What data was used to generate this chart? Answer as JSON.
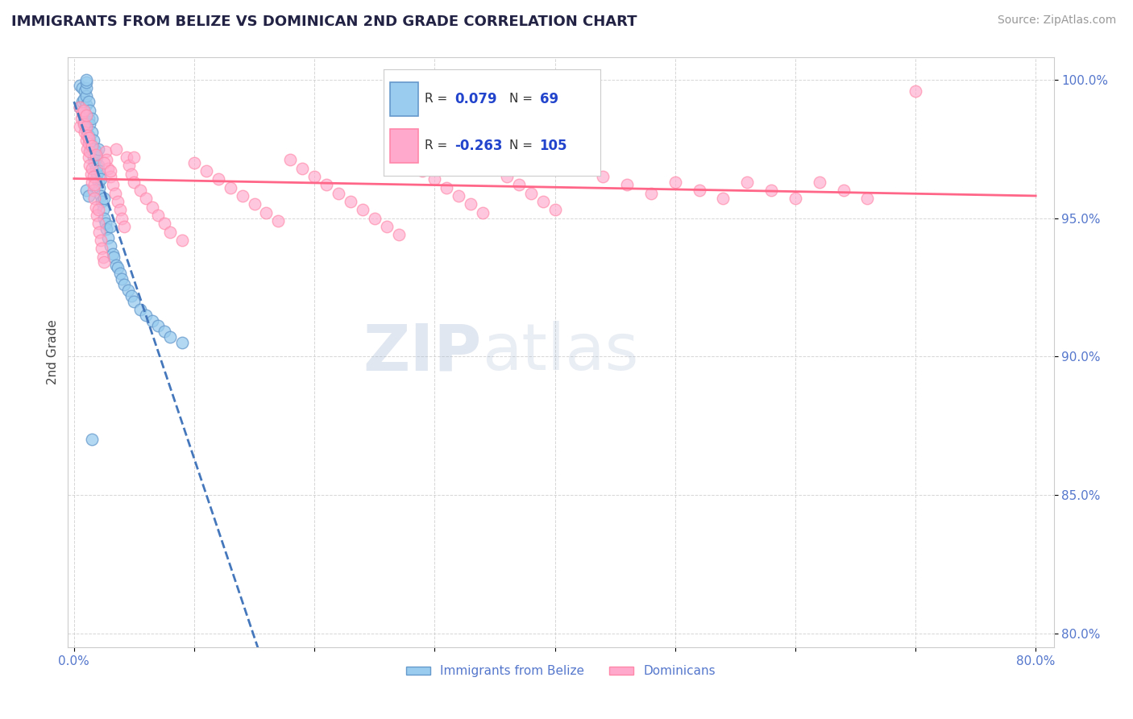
{
  "title": "IMMIGRANTS FROM BELIZE VS DOMINICAN 2ND GRADE CORRELATION CHART",
  "source": "Source: ZipAtlas.com",
  "ylabel": "2nd Grade",
  "watermark_zip": "ZIP",
  "watermark_atlas": "atlas",
  "legend_label1": "Immigrants from Belize",
  "legend_label2": "Dominicans",
  "r1": 0.079,
  "n1": 69,
  "r2": -0.263,
  "n2": 105,
  "xmin": 0.0,
  "xmax": 0.8,
  "ymin": 0.795,
  "ymax": 1.008,
  "yticks": [
    0.8,
    0.85,
    0.9,
    0.95,
    1.0
  ],
  "ytick_labels": [
    "80.0%",
    "85.0%",
    "90.0%",
    "95.0%",
    "100.0%"
  ],
  "xticks": [
    0.0,
    0.1,
    0.2,
    0.3,
    0.4,
    0.5,
    0.6,
    0.7,
    0.8
  ],
  "xtick_labels": [
    "0.0%",
    "",
    "",
    "",
    "",
    "",
    "",
    "",
    "80.0%"
  ],
  "color_belize": "#99CCEE",
  "color_dominican": "#FFAACC",
  "edge_belize": "#6699CC",
  "edge_dominican": "#FF88AA",
  "line_color_belize": "#4477BB",
  "line_color_dominican": "#FF6688",
  "title_color": "#222244",
  "ylabel_color": "#444444",
  "tick_label_color": "#5577CC",
  "source_color": "#999999",
  "legend_r_color": "#2244CC",
  "background_color": "#FFFFFF",
  "belize_x": [
    0.005,
    0.005,
    0.007,
    0.007,
    0.008,
    0.008,
    0.009,
    0.009,
    0.01,
    0.01,
    0.01,
    0.01,
    0.01,
    0.01,
    0.01,
    0.012,
    0.012,
    0.012,
    0.013,
    0.013,
    0.013,
    0.014,
    0.015,
    0.015,
    0.015,
    0.016,
    0.016,
    0.017,
    0.017,
    0.018,
    0.018,
    0.019,
    0.019,
    0.02,
    0.02,
    0.02,
    0.021,
    0.021,
    0.022,
    0.022,
    0.023,
    0.024,
    0.025,
    0.025,
    0.026,
    0.027,
    0.028,
    0.03,
    0.03,
    0.032,
    0.033,
    0.035,
    0.036,
    0.038,
    0.04,
    0.042,
    0.045,
    0.048,
    0.05,
    0.055,
    0.06,
    0.065,
    0.07,
    0.075,
    0.08,
    0.09,
    0.01,
    0.012,
    0.015
  ],
  "belize_y": [
    0.99,
    0.998,
    0.992,
    0.997,
    0.985,
    0.993,
    0.984,
    0.996,
    0.982,
    0.987,
    0.991,
    0.994,
    0.997,
    0.999,
    1.0,
    0.98,
    0.986,
    0.992,
    0.978,
    0.984,
    0.989,
    0.975,
    0.976,
    0.981,
    0.986,
    0.972,
    0.978,
    0.97,
    0.975,
    0.968,
    0.974,
    0.966,
    0.972,
    0.963,
    0.969,
    0.975,
    0.961,
    0.967,
    0.958,
    0.964,
    0.956,
    0.953,
    0.95,
    0.957,
    0.948,
    0.946,
    0.943,
    0.94,
    0.947,
    0.937,
    0.936,
    0.933,
    0.932,
    0.93,
    0.928,
    0.926,
    0.924,
    0.922,
    0.92,
    0.917,
    0.915,
    0.913,
    0.911,
    0.909,
    0.907,
    0.905,
    0.96,
    0.958,
    0.87
  ],
  "dominican_x": [
    0.005,
    0.005,
    0.006,
    0.007,
    0.008,
    0.008,
    0.009,
    0.01,
    0.01,
    0.01,
    0.011,
    0.011,
    0.012,
    0.012,
    0.013,
    0.013,
    0.014,
    0.015,
    0.015,
    0.016,
    0.016,
    0.017,
    0.017,
    0.018,
    0.019,
    0.02,
    0.02,
    0.021,
    0.022,
    0.023,
    0.024,
    0.025,
    0.026,
    0.027,
    0.028,
    0.03,
    0.032,
    0.034,
    0.036,
    0.038,
    0.04,
    0.042,
    0.044,
    0.046,
    0.048,
    0.05,
    0.055,
    0.06,
    0.065,
    0.07,
    0.075,
    0.08,
    0.09,
    0.1,
    0.11,
    0.12,
    0.13,
    0.14,
    0.15,
    0.16,
    0.17,
    0.18,
    0.19,
    0.2,
    0.21,
    0.22,
    0.23,
    0.24,
    0.25,
    0.26,
    0.27,
    0.28,
    0.29,
    0.3,
    0.31,
    0.32,
    0.33,
    0.34,
    0.35,
    0.36,
    0.37,
    0.38,
    0.39,
    0.4,
    0.42,
    0.44,
    0.46,
    0.48,
    0.5,
    0.52,
    0.54,
    0.56,
    0.58,
    0.6,
    0.62,
    0.64,
    0.66,
    0.012,
    0.015,
    0.018,
    0.025,
    0.03,
    0.035,
    0.05,
    0.7
  ],
  "dominican_y": [
    0.983,
    0.99,
    0.986,
    0.988,
    0.984,
    0.989,
    0.981,
    0.978,
    0.983,
    0.987,
    0.975,
    0.98,
    0.972,
    0.977,
    0.969,
    0.974,
    0.966,
    0.963,
    0.968,
    0.96,
    0.965,
    0.957,
    0.962,
    0.954,
    0.951,
    0.948,
    0.953,
    0.945,
    0.942,
    0.939,
    0.936,
    0.934,
    0.974,
    0.971,
    0.968,
    0.965,
    0.962,
    0.959,
    0.956,
    0.953,
    0.95,
    0.947,
    0.972,
    0.969,
    0.966,
    0.963,
    0.96,
    0.957,
    0.954,
    0.951,
    0.948,
    0.945,
    0.942,
    0.97,
    0.967,
    0.964,
    0.961,
    0.958,
    0.955,
    0.952,
    0.949,
    0.971,
    0.968,
    0.965,
    0.962,
    0.959,
    0.956,
    0.953,
    0.95,
    0.947,
    0.944,
    0.97,
    0.967,
    0.964,
    0.961,
    0.958,
    0.955,
    0.952,
    0.968,
    0.965,
    0.962,
    0.959,
    0.956,
    0.953,
    0.968,
    0.965,
    0.962,
    0.959,
    0.963,
    0.96,
    0.957,
    0.963,
    0.96,
    0.957,
    0.963,
    0.96,
    0.957,
    0.979,
    0.976,
    0.973,
    0.97,
    0.967,
    0.975,
    0.972,
    0.996
  ]
}
